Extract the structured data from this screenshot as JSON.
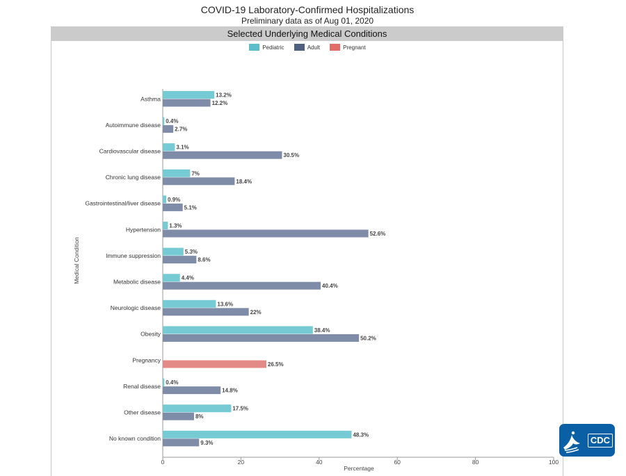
{
  "title": "COVID-19 Laboratory-Confirmed Hospitalizations",
  "subtitle": "Preliminary data as of Aug 01, 2020",
  "panel_title": "Selected Underlying Medical Conditions",
  "legend": [
    {
      "label": "Pediatric",
      "color": "#5bbfcb"
    },
    {
      "label": "Adult",
      "color": "#4f5f7f"
    },
    {
      "label": "Pregnant",
      "color": "#e06d6a"
    }
  ],
  "logo_text": "CDC",
  "chart_data": {
    "type": "bar",
    "orientation": "horizontal",
    "xlabel": "Percentage",
    "ylabel": "Medical Condition",
    "xlim": [
      0,
      100
    ],
    "xticks": [
      0,
      20,
      40,
      60,
      80,
      100
    ],
    "categories": [
      "Asthma",
      "Autoimmune disease",
      "Cardiovascular disease",
      "Chronic lung disease",
      "Gastrointestinal/liver disease",
      "Hypertension",
      "Immune suppression",
      "Metabolic disease",
      "Neurologic disease",
      "Obesity",
      "Pregnancy",
      "Renal disease",
      "Other disease",
      "No known condition"
    ],
    "series": [
      {
        "name": "Pediatric",
        "color": "#76cad3",
        "values": [
          13.2,
          0.4,
          3.1,
          7,
          0.9,
          1.3,
          5.3,
          4.4,
          13.6,
          38.4,
          null,
          0.4,
          17.5,
          48.3
        ],
        "labels": [
          "13.2%",
          "0.4%",
          "3.1%",
          "7%",
          "0.9%",
          "1.3%",
          "5.3%",
          "4.4%",
          "13.6%",
          "38.4%",
          null,
          "0.4%",
          "17.5%",
          "48.3%"
        ]
      },
      {
        "name": "Adult",
        "color": "#7f8ca8",
        "values": [
          12.2,
          2.7,
          30.5,
          18.4,
          5.1,
          52.6,
          8.6,
          40.4,
          22,
          50.2,
          null,
          14.8,
          8,
          9.3
        ],
        "labels": [
          "12.2%",
          "2.7%",
          "30.5%",
          "18.4%",
          "5.1%",
          "52.6%",
          "8.6%",
          "40.4%",
          "22%",
          "50.2%",
          null,
          "14.8%",
          "8%",
          "9.3%"
        ]
      },
      {
        "name": "Pregnant",
        "color": "#e38a86",
        "values": [
          null,
          null,
          null,
          null,
          null,
          null,
          null,
          null,
          null,
          null,
          26.5,
          null,
          null,
          null
        ],
        "labels": [
          null,
          null,
          null,
          null,
          null,
          null,
          null,
          null,
          null,
          null,
          "26.5%",
          null,
          null,
          null
        ]
      }
    ]
  }
}
